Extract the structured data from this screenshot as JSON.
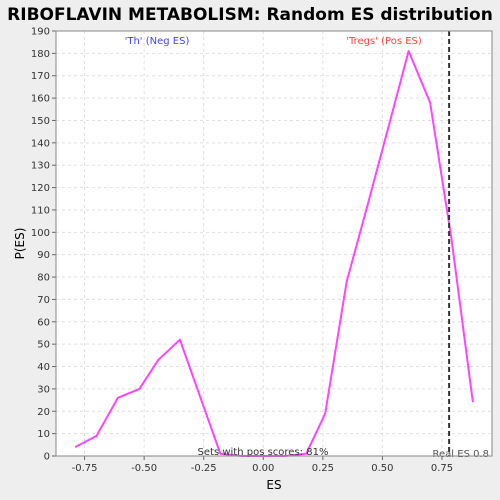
{
  "chart_data": {
    "type": "line",
    "title": "RIBOFLAVIN METABOLISM: Random ES distribution",
    "xlabel": "ES",
    "ylabel": "P(ES)",
    "xlim": [
      -0.87,
      0.96
    ],
    "ylim": [
      0,
      190
    ],
    "x_ticks": [
      "-0.75",
      "-0.50",
      "-0.25",
      "0.00",
      "0.25",
      "0.50",
      "0.75"
    ],
    "x_tick_values": [
      -0.75,
      -0.5,
      -0.25,
      0.0,
      0.25,
      0.5,
      0.75
    ],
    "y_ticks": [
      "0",
      "10",
      "20",
      "30",
      "40",
      "50",
      "60",
      "70",
      "80",
      "90",
      "100",
      "110",
      "120",
      "130",
      "140",
      "150",
      "160",
      "170",
      "180",
      "190"
    ],
    "y_tick_values": [
      0,
      10,
      20,
      30,
      40,
      50,
      60,
      70,
      80,
      90,
      100,
      110,
      120,
      130,
      140,
      150,
      160,
      170,
      180,
      190
    ],
    "grid": true,
    "series": [
      {
        "color": "#ff44ff",
        "x": [
          -0.79,
          -0.7,
          -0.61,
          -0.52,
          -0.44,
          -0.35,
          -0.26,
          -0.18,
          -0.09,
          0.0,
          0.09,
          0.18,
          0.26,
          0.35,
          0.44,
          0.53,
          0.61,
          0.7,
          0.79,
          0.88
        ],
        "y": [
          4,
          9,
          26,
          30,
          43,
          52,
          25,
          1,
          0,
          0,
          0,
          1,
          19,
          78,
          113,
          149,
          181,
          158,
          97,
          24
        ]
      }
    ],
    "vline": {
      "x": 0.78,
      "color": "#333333"
    },
    "annotations": {
      "neg": "'Th' (Neg ES)",
      "pos": "'Tregs' (Pos ES)",
      "pos_scores": "Sets with pos scores: 81%",
      "real": "Real ES 0.8"
    },
    "colors": {
      "neg": "#4444ff",
      "pos": "#ff4444"
    }
  }
}
